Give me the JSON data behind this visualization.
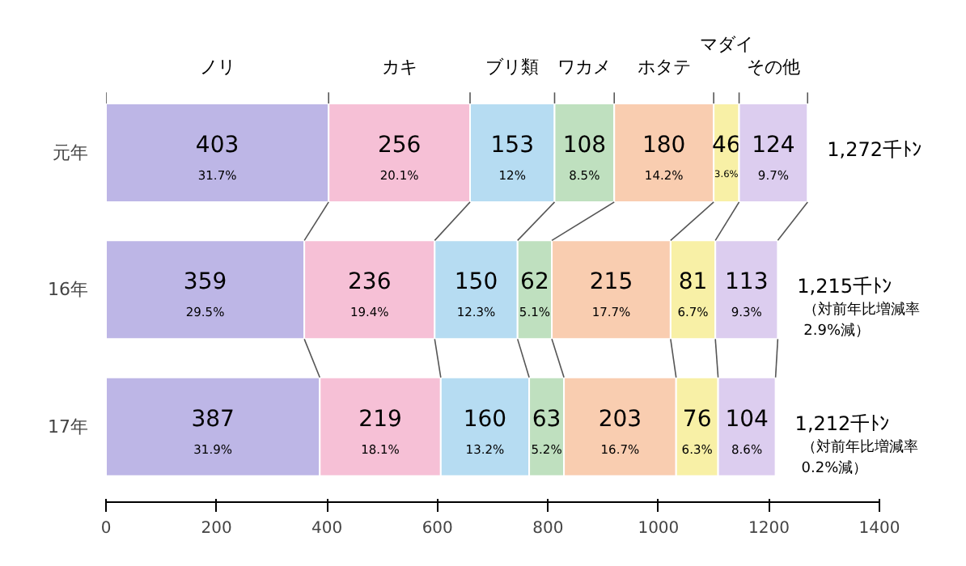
{
  "chart_data": {
    "type": "bar",
    "orientation": "horizontal",
    "stacked": true,
    "legend": false,
    "grid": false,
    "categories": [
      "元年",
      "16年",
      "17年"
    ],
    "xlim": [
      0,
      1400
    ],
    "xticks": [
      0,
      200,
      400,
      600,
      800,
      1000,
      1200,
      1400
    ],
    "series": [
      {
        "name": "ノリ",
        "color": "#bdb6e6",
        "values": [
          403,
          359,
          387
        ],
        "value_labels": [
          "403\n31.7%",
          "359\n29.5%",
          "387\n31.9%"
        ]
      },
      {
        "name": "カキ",
        "color": "#f6c0d6",
        "values": [
          256,
          236,
          219
        ],
        "value_labels": [
          "256\n20.1%",
          "236\n19.4%",
          "219\n18.1%"
        ]
      },
      {
        "name": "ブリ類",
        "color": "#b6dcf2",
        "values": [
          153,
          150,
          160
        ],
        "value_labels": [
          "153\n12%",
          "150\n12.3%",
          "160\n13.2%"
        ]
      },
      {
        "name": "ワカメ",
        "color": "#bfe0bf",
        "values": [
          108,
          62,
          63
        ],
        "value_labels": [
          "108\n8.5%",
          "62\n5.1%",
          "63\n5.2%"
        ]
      },
      {
        "name": "ホタテ",
        "color": "#f9cdb0",
        "values": [
          180,
          215,
          203
        ],
        "value_labels": [
          "180\n14.2%",
          "215\n17.7%",
          "203\n16.7%"
        ]
      },
      {
        "name": "マダイ",
        "color": "#f8f0a6",
        "values": [
          46,
          81,
          76
        ],
        "value_labels": [
          "46\n3.6%",
          "81\n6.7%",
          "76\n6.3%"
        ]
      },
      {
        "name": "その他",
        "color": "#dccdef",
        "values": [
          124,
          113,
          104
        ],
        "value_labels": [
          "124\n9.7%",
          "113\n9.3%",
          "104\n8.6%"
        ]
      }
    ],
    "totals": [
      "1,272千ﾄﾝ",
      "1,215千ﾄﾝ",
      "1,212千ﾄﾝ"
    ],
    "annotations": [
      "（対前年比増減率\n2.9%減）",
      "（対前年比増減率\n0.2%減）"
    ]
  }
}
